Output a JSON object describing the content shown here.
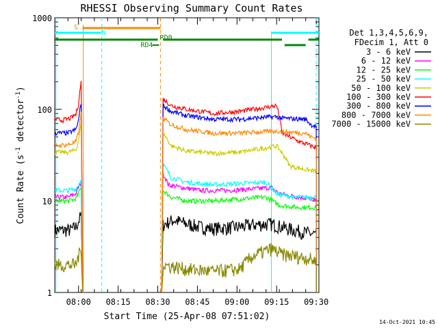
{
  "chart_data": {
    "type": "line",
    "title": "RHESSI Observing Summary Count Rates",
    "xlabel": "Start Time (25-Apr-08 07:51:02)",
    "ylabel_main": "Count Rate (s",
    "ylabel_sup1": "-1",
    "ylabel_mid": " detector",
    "ylabel_sup2": "-1",
    "ylabel_end": ")",
    "xlim": [
      0,
      100
    ],
    "ylim": [
      1,
      1000
    ],
    "yscale": "log",
    "x_ticks": [
      {
        "label": "08:00",
        "value": 9
      },
      {
        "label": "08:15",
        "value": 24
      },
      {
        "label": "08:30",
        "value": 39
      },
      {
        "label": "08:45",
        "value": 54
      },
      {
        "label": "09:00",
        "value": 69
      },
      {
        "label": "09:15",
        "value": 84
      },
      {
        "label": "09:30",
        "value": 99
      }
    ],
    "y_ticks": [
      {
        "label": "1",
        "value": 1
      },
      {
        "label": "10",
        "value": 10
      },
      {
        "label": "100",
        "value": 100
      },
      {
        "label": "1000",
        "value": 1000
      }
    ],
    "legend_header": [
      "Det 1,3,4,5,6,9,",
      "FDecim 1, Att 0"
    ],
    "series": [
      {
        "name": "3 - 6 keV",
        "color": "#000000",
        "points": [
          [
            0,
            4.8
          ],
          [
            6,
            4.8
          ],
          [
            8,
            5.2
          ],
          [
            9,
            6
          ],
          [
            10,
            7
          ],
          [
            10.6,
            1
          ]
        ]
      },
      {
        "name": "6 - 12 keV",
        "color": "#ff00ff",
        "points": [
          [
            0,
            11
          ],
          [
            5,
            11
          ],
          [
            8,
            12
          ],
          [
            9,
            14
          ],
          [
            10,
            16
          ],
          [
            10.6,
            1
          ]
        ]
      },
      {
        "name": "12 - 25 keV",
        "color": "#00ff00",
        "points": [
          [
            0,
            10
          ],
          [
            5,
            10
          ],
          [
            8,
            10.5
          ],
          [
            9,
            12
          ],
          [
            10,
            14
          ],
          [
            10.6,
            1
          ]
        ]
      },
      {
        "name": "25 - 50 keV",
        "color": "#00ffff",
        "points": [
          [
            0,
            13
          ],
          [
            5,
            13
          ],
          [
            8,
            13.5
          ],
          [
            9,
            15
          ],
          [
            10,
            17
          ],
          [
            10.6,
            1
          ]
        ]
      },
      {
        "name": "50 - 100 keV",
        "color": "#cccc00",
        "points": [
          [
            0,
            34
          ],
          [
            5,
            34
          ],
          [
            8,
            36
          ],
          [
            9,
            45
          ],
          [
            10,
            70
          ],
          [
            10.6,
            1
          ]
        ]
      },
      {
        "name": "100 - 300 keV",
        "color": "#ff0000",
        "points": [
          [
            0,
            78
          ],
          [
            3,
            76
          ],
          [
            6,
            80
          ],
          [
            8,
            88
          ],
          [
            9,
            115
          ],
          [
            10,
            200
          ],
          [
            10.6,
            1
          ]
        ]
      },
      {
        "name": "300 - 800 keV",
        "color": "#0000ff",
        "points": [
          [
            0,
            55
          ],
          [
            5,
            55
          ],
          [
            8,
            60
          ],
          [
            9,
            75
          ],
          [
            10,
            120
          ],
          [
            10.6,
            1
          ]
        ]
      },
      {
        "name": "800 - 7000 keV",
        "color": "#ff8800",
        "points": [
          [
            0,
            40
          ],
          [
            5,
            41
          ],
          [
            8,
            44
          ],
          [
            9,
            55
          ],
          [
            10,
            90
          ],
          [
            10.6,
            1
          ]
        ]
      },
      {
        "name": "7000 - 15000 keV",
        "color": "#888800",
        "points": [
          [
            0,
            2
          ],
          [
            5,
            2
          ],
          [
            8,
            2
          ],
          [
            9,
            2.5
          ],
          [
            10,
            3
          ],
          [
            10.6,
            1
          ]
        ]
      }
    ],
    "annotations": [
      {
        "text": "S",
        "color": "#ff8800",
        "x": 7.3
      },
      {
        "text": "N",
        "color": "#00ffff",
        "x": 17.8
      },
      {
        "text": "RD0",
        "color": "#008800",
        "x": 39.8
      },
      {
        "text": "RD4",
        "color": "#008800",
        "x": 32.5
      }
    ],
    "timestamp": "14-Oct-2021 10:45"
  }
}
